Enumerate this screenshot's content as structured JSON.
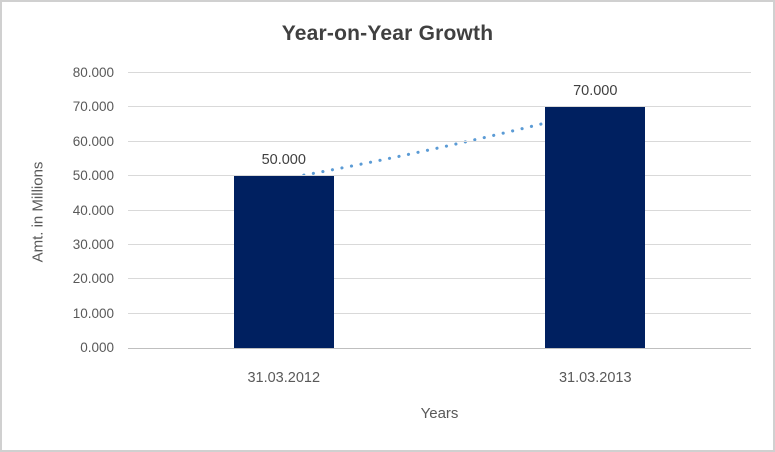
{
  "window": {
    "background": "#ffffff",
    "border_color": "#d0d0d0"
  },
  "chart_data": {
    "type": "bar",
    "title": "Year-on-Year Growth",
    "xlabel": "Years",
    "ylabel": "Amt. in Millions",
    "categories": [
      "31.03.2012",
      "31.03.2013"
    ],
    "values": [
      50,
      70
    ],
    "value_labels": [
      "50.000",
      "70.000"
    ],
    "ylim": [
      0,
      80
    ],
    "ytick_step": 10,
    "ytick_labels": [
      "0.000",
      "10.000",
      "20.000",
      "30.000",
      "40.000",
      "50.000",
      "60.000",
      "70.000",
      "80.000"
    ],
    "grid": true,
    "legend": "none",
    "annotations": [
      "dotted trendline connecting bar tops"
    ],
    "colors": {
      "bar": "#002060",
      "gridline": "#d9d9d9",
      "axis_line": "#bfbfbf",
      "trendline": "#5b9bd5",
      "title_text": "#404040",
      "tick_text": "#595959",
      "value_label_text": "#404040"
    }
  }
}
